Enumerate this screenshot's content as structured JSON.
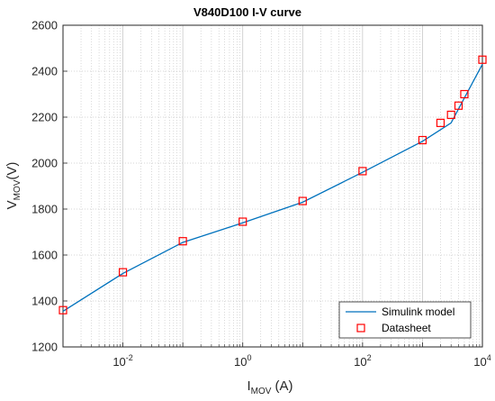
{
  "chart_data": {
    "type": "line",
    "title": "V840D100 I-V curve",
    "xlabel": {
      "main": "I",
      "sub": "MOV",
      "unit": " (A)"
    },
    "ylabel": {
      "main": "V",
      "sub": "MOV",
      "unit": "(V)"
    },
    "x_scale": "log",
    "xlim": [
      0.001,
      10000
    ],
    "ylim": [
      1200,
      2600
    ],
    "x_ticks": [
      {
        "value": 0.01,
        "base": "10",
        "exp": "-2"
      },
      {
        "value": 1,
        "base": "10",
        "exp": "0"
      },
      {
        "value": 100,
        "base": "10",
        "exp": "2"
      },
      {
        "value": 10000,
        "base": "10",
        "exp": "4"
      }
    ],
    "y_ticks": [
      1200,
      1400,
      1600,
      1800,
      2000,
      2200,
      2400,
      2600
    ],
    "grid": true,
    "legend_position": "bottom-right",
    "series": [
      {
        "name": "Simulink model",
        "style": "line",
        "color": "#0072BD",
        "x": [
          0.001,
          0.01,
          0.1,
          1,
          10,
          100,
          1000,
          3000,
          10000
        ],
        "y": [
          1355,
          1520,
          1655,
          1740,
          1830,
          1960,
          2095,
          2175,
          2430
        ]
      },
      {
        "name": "Datasheet",
        "style": "marker-square",
        "color": "#FF0000",
        "x": [
          0.001,
          0.01,
          0.1,
          1,
          10,
          100,
          1000,
          2000,
          3000,
          4000,
          5000,
          10000
        ],
        "y": [
          1360,
          1525,
          1660,
          1745,
          1835,
          1965,
          2100,
          2175,
          2210,
          2250,
          2300,
          2450
        ]
      }
    ]
  }
}
